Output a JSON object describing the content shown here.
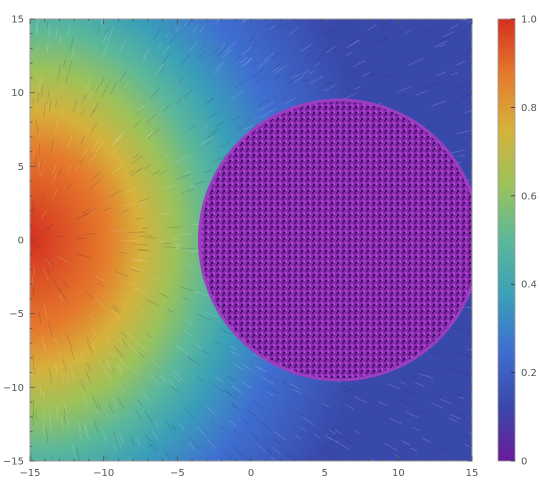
{
  "chart_data": {
    "type": "heatmap",
    "title": "",
    "xlabel": "",
    "ylabel": "",
    "xlim": [
      -15,
      15
    ],
    "ylim": [
      -15,
      15
    ],
    "x_ticks": [
      -15,
      -10,
      -5,
      0,
      5,
      10,
      15
    ],
    "y_ticks": [
      -15,
      -10,
      -5,
      0,
      5,
      10,
      15
    ],
    "x_tick_labels": [
      "−15",
      "−10",
      "−5",
      "0",
      "5",
      "10",
      "15"
    ],
    "y_tick_labels": [
      "−15",
      "−10",
      "−5",
      "0",
      "5",
      "10",
      "15"
    ],
    "field": {
      "description_visible": "streamline density plot",
      "peak_value": 1.0,
      "peak_location": [
        -15,
        0
      ],
      "min_value": 0.0
    },
    "circle": {
      "center": [
        6,
        0
      ],
      "radius": 9.5,
      "value": 0.0
    },
    "colorbar": {
      "min": 0,
      "max": 1,
      "ticks": [
        0,
        0.2,
        0.4,
        0.6,
        0.8,
        1.0
      ],
      "tick_labels": [
        "0",
        "0.2",
        "0.4",
        "0.6",
        "0.8",
        "1.0"
      ],
      "colormap": [
        "#6a1b9a",
        "#3949ab",
        "#3f6fd1",
        "#3aa0b8",
        "#5cb89a",
        "#9cc25a",
        "#d6b23c",
        "#e57a2c",
        "#d43020"
      ]
    },
    "frame_color": "#999999",
    "tick_color": "#555555"
  }
}
